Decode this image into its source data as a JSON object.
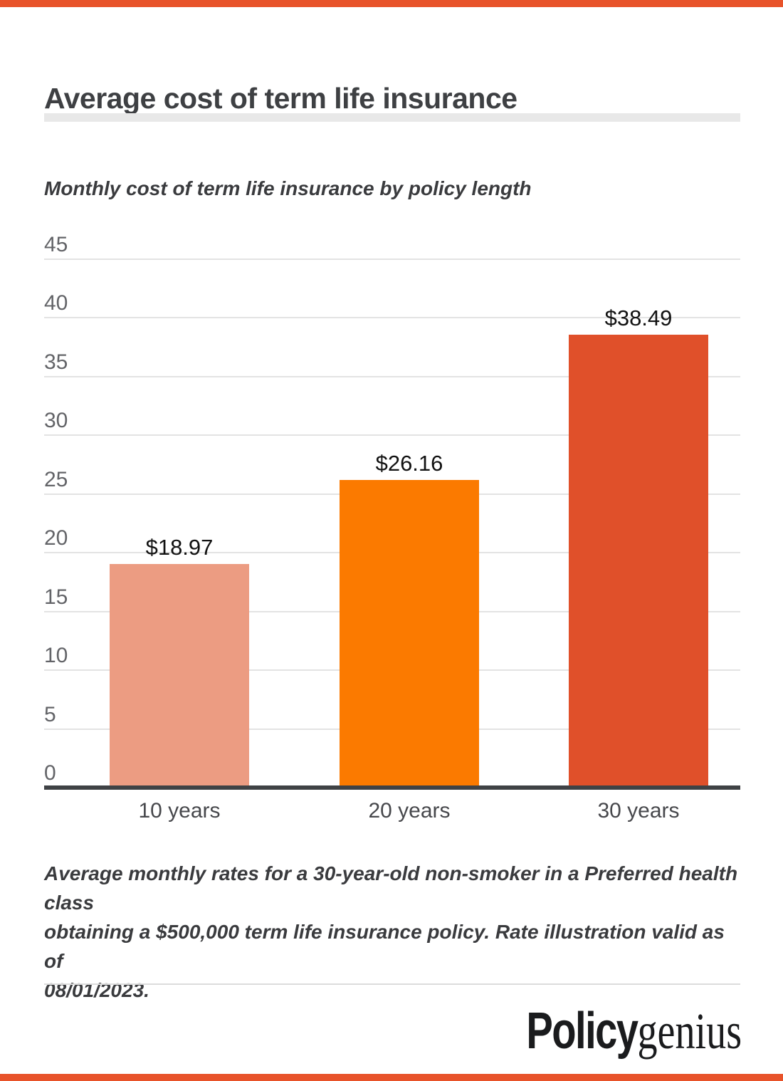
{
  "page": {
    "title": "Average cost of term life insurance",
    "accent_color": "#e8532a"
  },
  "subtitle": "Monthly cost of term life insurance by policy length",
  "footnote": {
    "lines": [
      "Average monthly rates for a 30-year-old non-smoker in a Preferred health class",
      "obtaining a $500,000 term life insurance policy. Rate illustration valid as of",
      "08/01/2023."
    ]
  },
  "brand": {
    "bold": "Policy",
    "regular": "genius"
  },
  "chart_data": {
    "type": "bar",
    "title": "Monthly cost of term life insurance by policy length",
    "categories": [
      "10 years",
      "20 years",
      "30 years"
    ],
    "values": [
      18.97,
      26.16,
      38.49
    ],
    "value_labels": [
      "$18.97",
      "$26.16",
      "$38.49"
    ],
    "bar_colors": [
      "#ec9c82",
      "#fb7a00",
      "#e0502a"
    ],
    "xlabel": "",
    "ylabel": "",
    "ylim": [
      0,
      45
    ],
    "yticks": [
      0,
      5,
      10,
      15,
      20,
      25,
      30,
      35,
      40,
      45
    ],
    "grid": true,
    "gridline_color": "#e3e3e3",
    "axis_color": "#3f4245",
    "legend": false
  }
}
